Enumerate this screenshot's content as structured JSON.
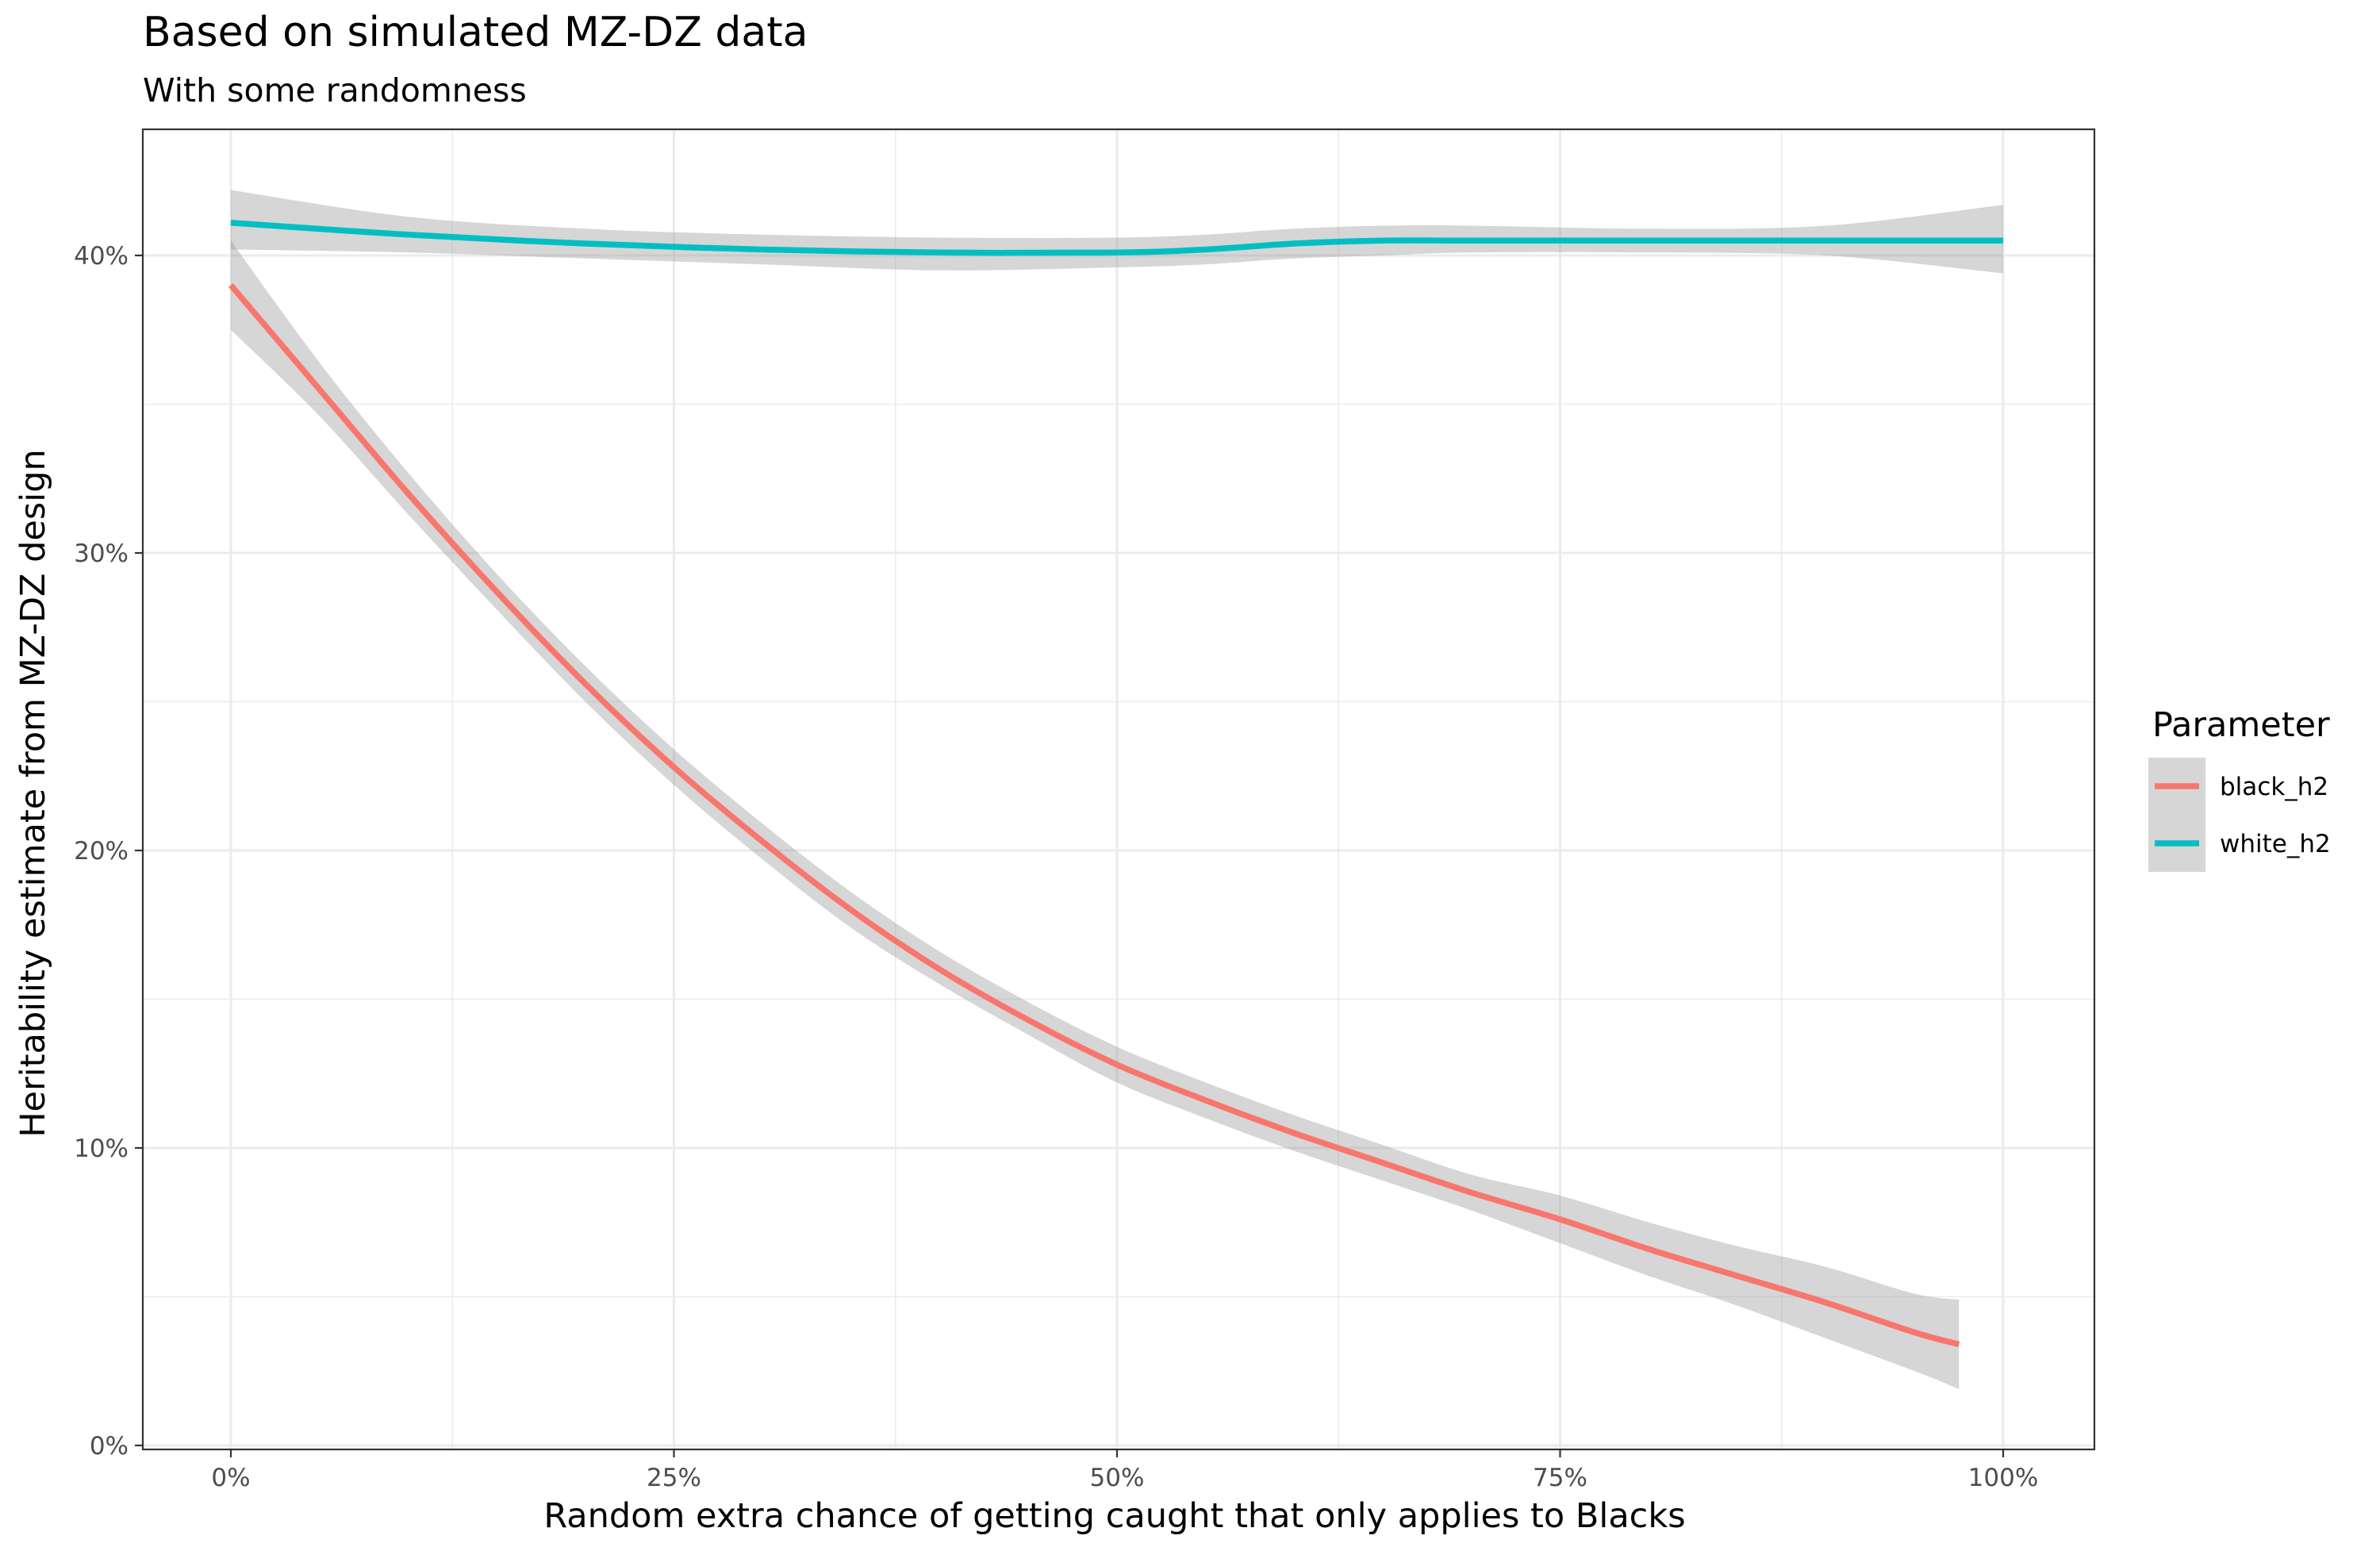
{
  "chart_data": {
    "type": "line",
    "title": "Based on simulated MZ-DZ data",
    "subtitle": "With some randomness",
    "xlabel": "Random extra chance of getting caught that only applies to Blacks",
    "ylabel": "Heritability estimate from MZ-DZ design",
    "xlim": [
      -0.1,
      1.0
    ],
    "ylim": [
      0,
      0.44
    ],
    "grid": true,
    "legend_position": "right",
    "legend_title": "Parameter",
    "x_ticks": [
      0,
      0.25,
      0.5,
      0.75,
      1.0
    ],
    "x_tick_labels": [
      "0%",
      "25%",
      "50%",
      "75%",
      "100%"
    ],
    "y_ticks": [
      0,
      0.1,
      0.2,
      0.3,
      0.4
    ],
    "y_tick_labels": [
      "0%",
      "10%",
      "20%",
      "30%",
      "40%"
    ],
    "series": [
      {
        "name": "black_h2",
        "color": "#F8766D",
        "x": [
          0,
          0.05,
          0.1,
          0.15,
          0.2,
          0.25,
          0.3,
          0.35,
          0.4,
          0.45,
          0.5,
          0.55,
          0.6,
          0.65,
          0.7,
          0.75,
          0.8,
          0.85,
          0.9,
          0.95,
          0.975
        ],
        "y": [
          0.39,
          0.355,
          0.32,
          0.287,
          0.256,
          0.228,
          0.203,
          0.18,
          0.16,
          0.143,
          0.128,
          0.116,
          0.105,
          0.095,
          0.085,
          0.076,
          0.066,
          0.057,
          0.048,
          0.038,
          0.034
        ],
        "lower": [
          0.375,
          0.346,
          0.313,
          0.281,
          0.25,
          0.222,
          0.197,
          0.174,
          0.155,
          0.138,
          0.122,
          0.11,
          0.099,
          0.089,
          0.079,
          0.068,
          0.057,
          0.047,
          0.036,
          0.025,
          0.019
        ],
        "upper": [
          0.405,
          0.364,
          0.327,
          0.293,
          0.262,
          0.234,
          0.209,
          0.186,
          0.166,
          0.149,
          0.134,
          0.122,
          0.111,
          0.101,
          0.091,
          0.084,
          0.075,
          0.067,
          0.06,
          0.051,
          0.049
        ]
      },
      {
        "name": "white_h2",
        "color": "#00BFC4",
        "x": [
          0,
          0.1,
          0.2,
          0.3,
          0.4,
          0.5,
          0.55,
          0.6,
          0.65,
          0.7,
          0.8,
          0.9,
          1.0
        ],
        "y": [
          0.411,
          0.407,
          0.404,
          0.402,
          0.401,
          0.401,
          0.402,
          0.404,
          0.405,
          0.405,
          0.405,
          0.405,
          0.405
        ],
        "lower": [
          0.402,
          0.401,
          0.399,
          0.397,
          0.395,
          0.396,
          0.397,
          0.399,
          0.4,
          0.401,
          0.401,
          0.4,
          0.394
        ],
        "upper": [
          0.422,
          0.413,
          0.409,
          0.407,
          0.406,
          0.406,
          0.407,
          0.409,
          0.41,
          0.41,
          0.409,
          0.41,
          0.417
        ]
      }
    ]
  }
}
